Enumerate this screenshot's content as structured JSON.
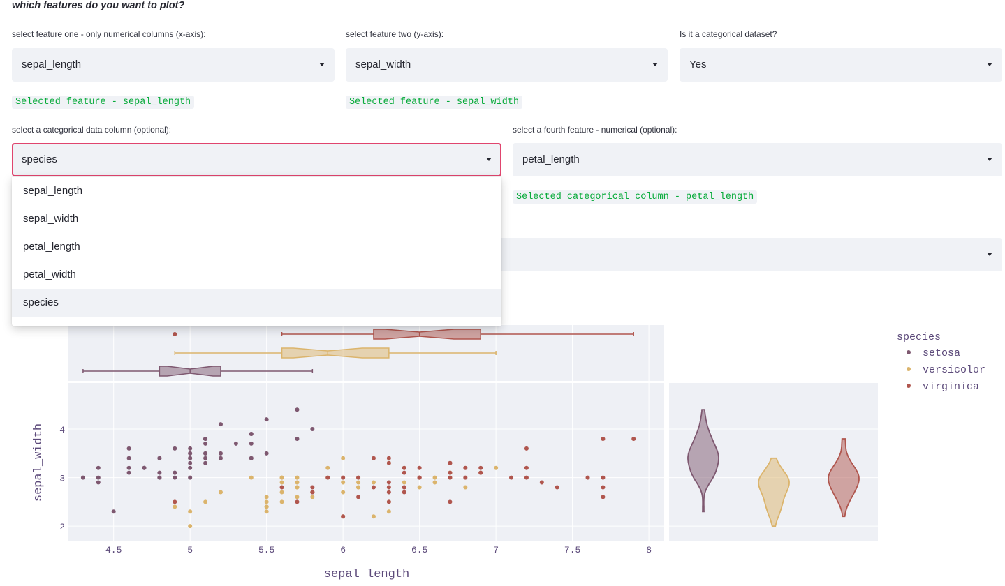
{
  "heading": "which features do you want to plot?",
  "feature_one": {
    "label": "select feature one - only numerical columns (x-axis):",
    "value": "sepal_length",
    "note": "Selected feature - sepal_length"
  },
  "feature_two": {
    "label": "select feature two (y-axis):",
    "value": "sepal_width",
    "note": "Selected feature - sepal_width"
  },
  "categorical_q": {
    "label": "Is it a categorical dataset?",
    "value": "Yes"
  },
  "cat_column": {
    "label": "select a categorical data column (optional):",
    "value": "species"
  },
  "fourth_feature": {
    "label": "select a fourth feature - numerical (optional):",
    "value": "petal_length",
    "note": "Selected categorical column - petal_length"
  },
  "dropdown_options": [
    "sepal_length",
    "sepal_width",
    "petal_length",
    "petal_width",
    "species"
  ],
  "dropdown_active": "species",
  "colors": {
    "setosa": "#7e5870",
    "versicolor": "#dbb46c",
    "virginica": "#b0564e",
    "accent": "#e0456e",
    "code_green": "#09ab3b",
    "plot_bg": "#eef0f5"
  },
  "chart_data": {
    "type": "scatter",
    "xlabel": "sepal_length",
    "ylabel": "sepal_width",
    "xlim": [
      4.2,
      8.1
    ],
    "ylim": [
      1.7,
      4.95
    ],
    "xticks": [
      "4.5",
      "5",
      "5.5",
      "6",
      "6.5",
      "7",
      "7.5",
      "8"
    ],
    "yticks": [
      "2",
      "3",
      "4"
    ],
    "legend_title": "species",
    "legend_position": "top-right",
    "series": [
      {
        "name": "setosa",
        "x": [
          5.1,
          4.9,
          4.7,
          4.6,
          5.0,
          5.4,
          4.6,
          5.0,
          4.4,
          4.9,
          5.4,
          4.8,
          4.8,
          4.3,
          5.8,
          5.7,
          5.4,
          5.1,
          5.7,
          5.1,
          5.4,
          5.1,
          4.6,
          5.1,
          4.8,
          5.0,
          5.0,
          5.2,
          5.2,
          4.7,
          4.8,
          5.4,
          5.2,
          5.5,
          4.9,
          5.0,
          5.5,
          4.9,
          4.4,
          5.1,
          5.0,
          4.5,
          4.4,
          5.0,
          5.1,
          4.8,
          5.1,
          4.6,
          5.3,
          5.0
        ],
        "y": [
          3.5,
          3.0,
          3.2,
          3.1,
          3.6,
          3.9,
          3.4,
          3.4,
          2.9,
          3.1,
          3.7,
          3.4,
          3.0,
          3.0,
          4.0,
          4.4,
          3.9,
          3.5,
          3.8,
          3.8,
          3.4,
          3.7,
          3.6,
          3.3,
          3.4,
          3.0,
          3.4,
          3.5,
          3.4,
          3.2,
          3.1,
          3.4,
          4.1,
          4.2,
          3.1,
          3.2,
          3.5,
          3.6,
          3.0,
          3.4,
          3.5,
          2.3,
          3.2,
          3.5,
          3.8,
          3.0,
          3.8,
          3.2,
          3.7,
          3.3
        ],
        "box": {
          "min": 4.3,
          "q1": 4.8,
          "median": 5.0,
          "q3": 5.2,
          "max": 5.8
        }
      },
      {
        "name": "versicolor",
        "x": [
          7.0,
          6.4,
          6.9,
          5.5,
          6.5,
          5.7,
          6.3,
          4.9,
          6.6,
          5.2,
          5.0,
          5.9,
          6.0,
          6.1,
          5.6,
          6.7,
          5.6,
          5.8,
          6.2,
          5.6,
          5.9,
          6.1,
          6.3,
          6.1,
          6.4,
          6.6,
          6.8,
          6.7,
          6.0,
          5.7,
          5.5,
          5.5,
          5.8,
          6.0,
          5.4,
          6.0,
          6.7,
          6.3,
          5.6,
          5.5,
          5.5,
          6.1,
          5.8,
          5.0,
          5.6,
          5.7,
          5.7,
          6.2,
          5.1,
          5.7
        ],
        "y": [
          3.2,
          3.2,
          3.1,
          2.3,
          2.8,
          2.8,
          3.3,
          2.4,
          2.9,
          2.7,
          2.0,
          3.0,
          2.2,
          2.9,
          2.9,
          3.1,
          3.0,
          2.7,
          2.2,
          2.5,
          3.2,
          2.8,
          2.5,
          2.8,
          2.9,
          3.0,
          2.8,
          3.0,
          2.9,
          2.6,
          2.4,
          2.4,
          2.7,
          2.7,
          3.0,
          3.4,
          3.1,
          2.3,
          3.0,
          2.5,
          2.6,
          3.0,
          2.6,
          2.3,
          2.7,
          3.0,
          2.9,
          2.9,
          2.5,
          2.8
        ],
        "box": {
          "min": 4.9,
          "q1": 5.6,
          "median": 5.9,
          "q3": 6.3,
          "max": 7.0
        }
      },
      {
        "name": "virginica",
        "x": [
          6.3,
          5.8,
          7.1,
          6.3,
          6.5,
          7.6,
          4.9,
          7.3,
          6.7,
          7.2,
          6.5,
          6.4,
          6.8,
          5.7,
          5.8,
          6.4,
          6.5,
          7.7,
          7.7,
          6.0,
          6.9,
          5.6,
          7.7,
          6.3,
          6.7,
          7.2,
          6.2,
          6.1,
          6.4,
          7.2,
          7.4,
          7.9,
          6.4,
          6.3,
          6.1,
          7.7,
          6.3,
          6.4,
          6.0,
          6.9,
          6.7,
          6.9,
          5.8,
          6.8,
          6.7,
          6.7,
          6.3,
          6.5,
          6.2,
          5.9
        ],
        "y": [
          3.3,
          2.7,
          3.0,
          2.9,
          3.0,
          3.0,
          2.5,
          2.9,
          2.5,
          3.6,
          3.2,
          2.7,
          3.0,
          2.5,
          2.8,
          3.2,
          3.0,
          3.8,
          2.6,
          2.2,
          3.2,
          2.8,
          2.8,
          2.7,
          3.3,
          3.2,
          2.8,
          3.0,
          2.8,
          3.0,
          2.8,
          3.8,
          2.8,
          2.8,
          2.6,
          3.0,
          3.4,
          3.1,
          3.0,
          3.1,
          3.1,
          3.1,
          2.7,
          3.2,
          3.3,
          3.0,
          2.5,
          3.0,
          3.4,
          3.0
        ],
        "box": {
          "min": 5.6,
          "q1": 6.2,
          "median": 6.5,
          "q3": 6.9,
          "max": 7.9,
          "outliers": [
            4.9
          ]
        }
      }
    ],
    "violin_axis": "sepal_width"
  }
}
